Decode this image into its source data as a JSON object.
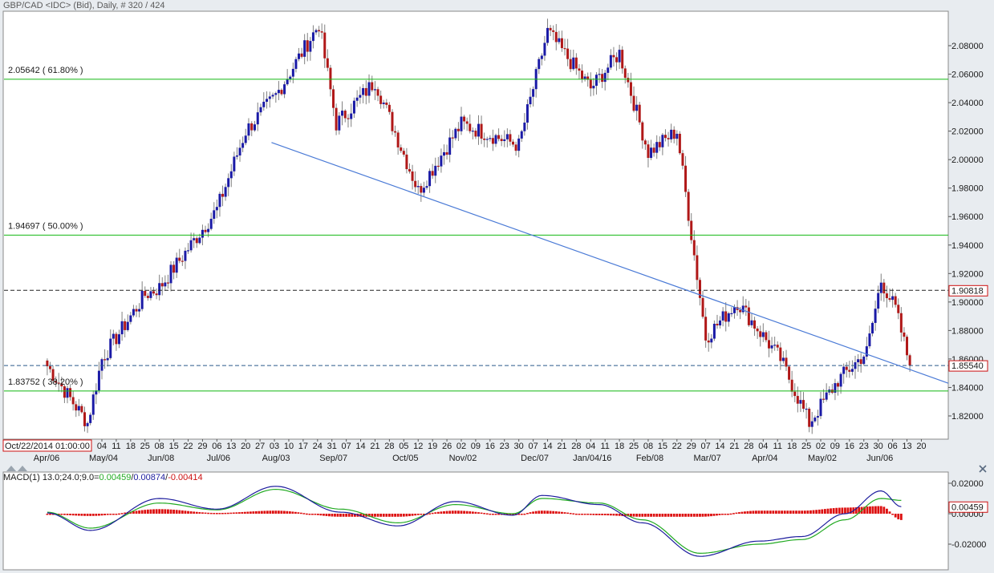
{
  "window": {
    "title": "GBP/CAD <IDC> (Bid), Daily, # 320 / 424",
    "cursor_timestamp": "Oct/22/2014 01:00:00"
  },
  "colors": {
    "bg": "#e8ecf0",
    "plot_bg": "#ffffff",
    "up": "#1a1aa6",
    "down": "#b01818",
    "wick": "#808080",
    "fib": "#12b812",
    "trendline": "#4a7ad6",
    "macd_line": "#1d1d9e",
    "signal_line": "#22aa22",
    "hist": "#dd1010",
    "label_red": "#cc1010"
  },
  "icons": [
    "collapse-triangle-icon",
    "close-x-icon"
  ],
  "chart_data": [
    {
      "type": "candlestick",
      "title": "GBP/CAD <IDC> (Bid), Daily, # 320 / 424",
      "y_range": [
        1.806,
        2.1
      ],
      "y_ticks": [
        "1.82000",
        "1.84000",
        "1.86000",
        "1.88000",
        "1.90000",
        "1.92000",
        "1.94000",
        "1.96000",
        "1.98000",
        "2.00000",
        "2.02000",
        "2.04000",
        "2.06000",
        "2.08000"
      ],
      "x_day_labels": [
        "04",
        "11",
        "18",
        "25",
        "08",
        "15",
        "22",
        "29",
        "06",
        "13",
        "20",
        "27",
        "03",
        "10",
        "17",
        "24",
        "31",
        "07",
        "14",
        "21",
        "28",
        "05",
        "12",
        "19",
        "26",
        "02",
        "09",
        "16",
        "23",
        "30",
        "07",
        "14",
        "21",
        "28",
        "04",
        "11",
        "18",
        "25",
        "08",
        "15",
        "22",
        "29",
        "07",
        "14",
        "21",
        "28",
        "04",
        "11",
        "18",
        "25",
        "02",
        "09",
        "16",
        "23",
        "30",
        "06",
        "13",
        "20"
      ],
      "x_month_labels": [
        "Apr/06",
        "May/04",
        "Jun/08",
        "Jul/06",
        "Aug/03",
        "Sep/07",
        "Oct/05",
        "Nov/02",
        "Dec/07",
        "Jan/04/16",
        "Feb/08",
        "Mar/07",
        "Apr/04",
        "May/02",
        "Jun/06"
      ],
      "key_points": [
        {
          "date": "Apr/06",
          "close": 1.855
        },
        {
          "date": "Apr/20",
          "close": 1.815
        },
        {
          "date": "May/04",
          "close": 1.86
        },
        {
          "date": "May/25",
          "close": 1.905
        },
        {
          "date": "Jun/08",
          "close": 1.91
        },
        {
          "date": "Jul/06",
          "close": 1.965
        },
        {
          "date": "Jul/20",
          "close": 2.02
        },
        {
          "date": "Aug/03",
          "close": 2.045
        },
        {
          "date": "Aug/24",
          "close": 2.095
        },
        {
          "date": "Sep/01",
          "close": 2.025
        },
        {
          "date": "Sep/21",
          "close": 2.055
        },
        {
          "date": "Oct/12",
          "close": 1.978
        },
        {
          "date": "Nov/02",
          "close": 2.025
        },
        {
          "date": "Nov/30",
          "close": 2.01
        },
        {
          "date": "Dec/14",
          "close": 2.09
        },
        {
          "date": "Jan/04/16",
          "close": 2.05
        },
        {
          "date": "Jan/18",
          "close": 2.075
        },
        {
          "date": "Feb/01",
          "close": 2.005
        },
        {
          "date": "Feb/15",
          "close": 2.02
        },
        {
          "date": "Feb/29",
          "close": 1.875
        },
        {
          "date": "Mar/14",
          "close": 1.9
        },
        {
          "date": "Apr/04",
          "close": 1.86
        },
        {
          "date": "Apr/18",
          "close": 1.815
        },
        {
          "date": "May/02",
          "close": 1.845
        },
        {
          "date": "May/16",
          "close": 1.865
        },
        {
          "date": "May/23",
          "close": 1.915
        },
        {
          "date": "May/30",
          "close": 1.895
        },
        {
          "date": "Jun/06",
          "close": 1.8554
        }
      ],
      "fib_levels": [
        {
          "label": "2.05642 ( 61.80% )",
          "value": 2.05642
        },
        {
          "label": "1.94697 ( 50.00% )",
          "value": 1.94697
        },
        {
          "label": "1.83752 ( 38.20% )",
          "value": 1.83752
        }
      ],
      "horizontal_lines": [
        {
          "label": "1.90818",
          "value": 1.90818
        },
        {
          "label": "1.85540",
          "value": 1.8554
        }
      ],
      "trendline": [
        {
          "date": "Jul/27",
          "value": 2.012
        },
        {
          "date": "Jun/27 (right edge)",
          "value": 1.843
        }
      ]
    },
    {
      "type": "line",
      "title": "MACD(1) 13.0;24.0;9.0=",
      "values_text": {
        "macd": "0.00459",
        "signal": "0.00874",
        "hist": "-0.00414"
      },
      "y_range": [
        -0.029,
        0.024
      ],
      "y_ticks": [
        "0.02000",
        "0.00000",
        "-0.02000"
      ],
      "current_label": "0.00459",
      "key_points": [
        {
          "date": "Apr/06",
          "macd": 0.0005,
          "signal": 0.001
        },
        {
          "date": "Apr/27",
          "macd": -0.011,
          "signal": -0.0095
        },
        {
          "date": "Jun/08",
          "macd": 0.01,
          "signal": 0.007
        },
        {
          "date": "Jul/06",
          "macd": 0.003,
          "signal": 0.0025
        },
        {
          "date": "Aug/03",
          "macd": 0.018,
          "signal": 0.016
        },
        {
          "date": "Sep/07",
          "macd": 0.001,
          "signal": 0.003
        },
        {
          "date": "Oct/05",
          "macd": -0.008,
          "signal": -0.006
        },
        {
          "date": "Nov/02",
          "macd": 0.008,
          "signal": 0.006
        },
        {
          "date": "Nov/30",
          "macd": -0.001,
          "signal": 0.0
        },
        {
          "date": "Dec/14",
          "macd": 0.012,
          "signal": 0.01
        },
        {
          "date": "Jan/18",
          "macd": 0.006,
          "signal": 0.007
        },
        {
          "date": "Feb/08",
          "macd": -0.006,
          "signal": -0.004
        },
        {
          "date": "Mar/07",
          "macd": -0.028,
          "signal": -0.026
        },
        {
          "date": "Apr/04",
          "macd": -0.018,
          "signal": -0.02
        },
        {
          "date": "Apr/25",
          "macd": -0.015,
          "signal": -0.017
        },
        {
          "date": "May/16",
          "macd": 0.0,
          "signal": -0.004
        },
        {
          "date": "May/30",
          "macd": 0.015,
          "signal": 0.01
        },
        {
          "date": "Jun/06",
          "macd": 0.00459,
          "signal": 0.00874
        }
      ]
    }
  ]
}
